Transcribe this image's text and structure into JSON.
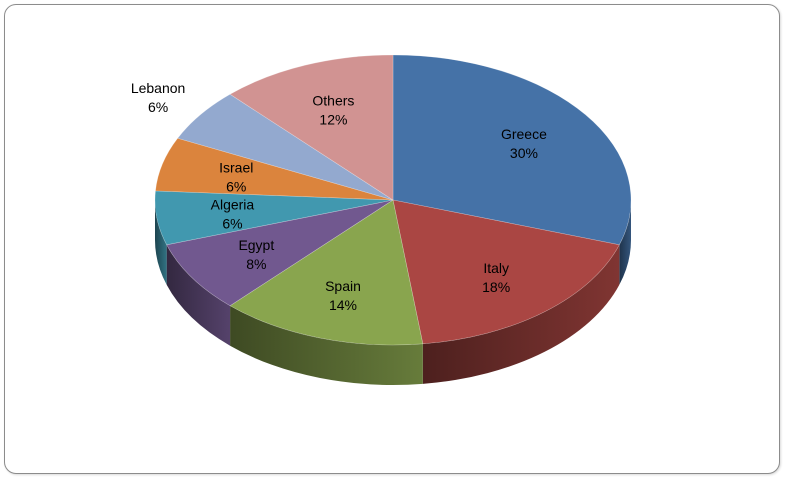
{
  "chart_data": {
    "type": "pie",
    "title": "",
    "three_d": true,
    "legend": "none",
    "slices": [
      {
        "label": "Greece",
        "value": 30,
        "display": "30%",
        "color": "#4572a7"
      },
      {
        "label": "Italy",
        "value": 18,
        "display": "18%",
        "color": "#aa4643"
      },
      {
        "label": "Spain",
        "value": 14,
        "display": "14%",
        "color": "#89a54e"
      },
      {
        "label": "Egypt",
        "value": 8,
        "display": "8%",
        "color": "#71588f"
      },
      {
        "label": "Algeria",
        "value": 6,
        "display": "6%",
        "color": "#4198af"
      },
      {
        "label": "Israel",
        "value": 6,
        "display": "6%",
        "color": "#db843d"
      },
      {
        "label": "Lebanon",
        "value": 6,
        "display": "6%",
        "color": "#93a9cf"
      },
      {
        "label": "Others",
        "value": 12,
        "display": "12%",
        "color": "#d19392"
      }
    ]
  }
}
